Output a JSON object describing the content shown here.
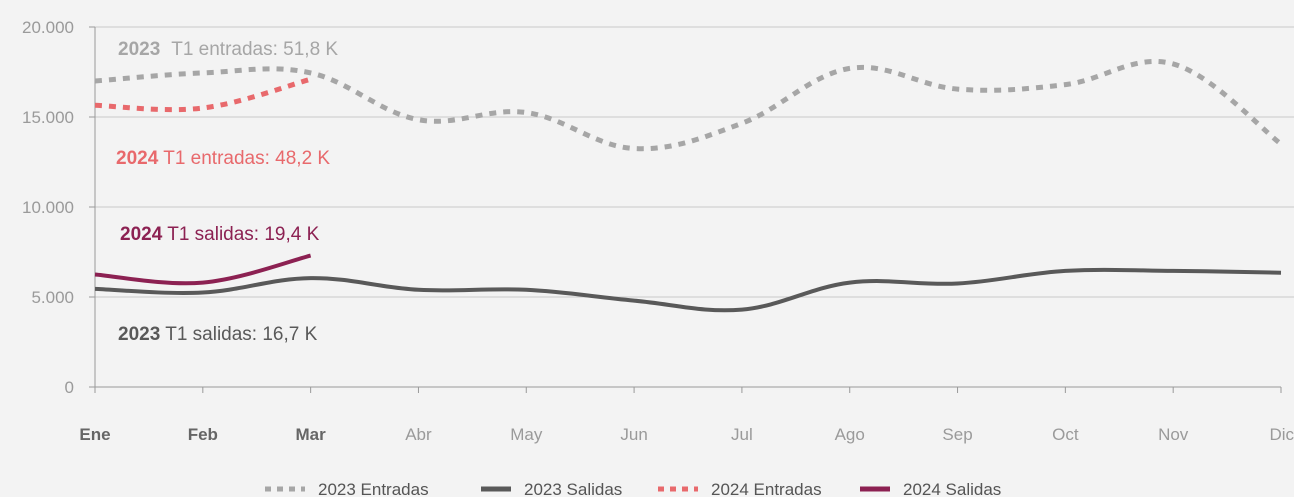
{
  "chart_data": {
    "type": "line",
    "categories": [
      "Ene",
      "Feb",
      "Mar",
      "Abr",
      "May",
      "Jun",
      "Jul",
      "Ago",
      "Sep",
      "Oct",
      "Nov",
      "Dic"
    ],
    "bold_categories": [
      "Ene",
      "Feb",
      "Mar"
    ],
    "ylim": [
      0,
      20000
    ],
    "yticks": [
      {
        "value": 0,
        "label": "0"
      },
      {
        "value": 5000,
        "label": "5.000"
      },
      {
        "value": 10000,
        "label": "10.000"
      },
      {
        "value": 15000,
        "label": "15.000"
      },
      {
        "value": 20000,
        "label": "20.000"
      }
    ],
    "grid": true,
    "legend_position": "bottom-center",
    "series": [
      {
        "name": "2023 Entradas",
        "color": "#a6a6a6",
        "style": "dotted",
        "values": [
          17000,
          17450,
          17450,
          14850,
          15250,
          13250,
          14650,
          17700,
          16550,
          16800,
          17950,
          13500
        ]
      },
      {
        "name": "2023 Salidas",
        "color": "#595959",
        "style": "solid",
        "values": [
          5450,
          5250,
          6050,
          5400,
          5400,
          4800,
          4300,
          5800,
          5750,
          6450,
          6450,
          6350
        ]
      },
      {
        "name": "2024 Entradas",
        "color": "#e8696c",
        "style": "dotted",
        "values": [
          15650,
          15500,
          17100,
          null,
          null,
          null,
          null,
          null,
          null,
          null,
          null,
          null
        ]
      },
      {
        "name": "2024 Salidas",
        "color": "#8c2152",
        "style": "solid",
        "values": [
          6250,
          5800,
          7300,
          null,
          null,
          null,
          null,
          null,
          null,
          null,
          null,
          null
        ]
      }
    ],
    "annotations": [
      {
        "id": "ann-2023-entradas",
        "bold": "2023",
        "text": " T1 entradas: 51,8 K",
        "color": "#a6a6a6"
      },
      {
        "id": "ann-2024-entradas",
        "bold": "2024",
        "text": " T1 entradas: 48,2 K",
        "color": "#e8696c"
      },
      {
        "id": "ann-2024-salidas",
        "bold": "2024",
        "text": " T1 salidas: 19,4 K",
        "color": "#8c2152"
      },
      {
        "id": "ann-2023-salidas",
        "bold": "2023",
        "text": " T1 salidas: 16,7 K",
        "color": "#595959"
      }
    ]
  }
}
